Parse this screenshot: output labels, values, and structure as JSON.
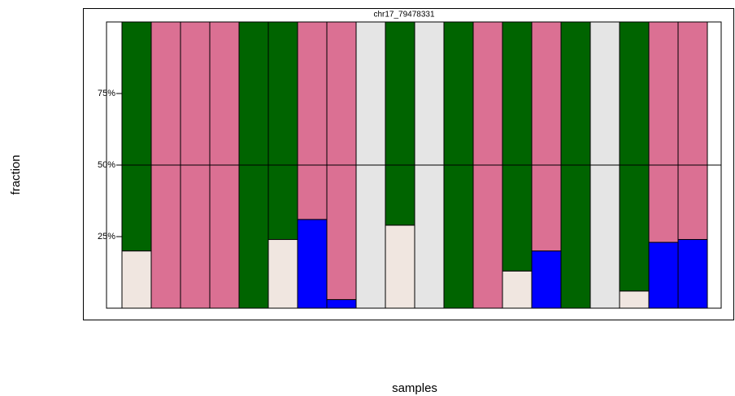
{
  "chart_data": {
    "type": "stacked-bar",
    "title": "chr17_79478331",
    "x_label": "samples",
    "y_label": "fraction",
    "ylim": [
      0,
      100
    ],
    "yticks": [
      {
        "value": 25,
        "label": "25%"
      },
      {
        "value": 50,
        "label": "50%"
      },
      {
        "value": 75,
        "label": "75%"
      }
    ],
    "reference_line": 50,
    "series": [
      {
        "color": "#f0e6e0",
        "values": [
          20,
          0,
          0,
          0,
          0,
          24,
          0,
          0,
          0,
          29,
          0,
          0,
          0,
          13,
          0,
          0,
          0,
          6,
          0,
          0
        ]
      },
      {
        "color": "#0000ff",
        "values": [
          0,
          0,
          0,
          0,
          0,
          0,
          31,
          3,
          0,
          0,
          0,
          0,
          0,
          0,
          20,
          0,
          0,
          0,
          23,
          24
        ]
      },
      {
        "color": "#006400",
        "values": [
          80,
          0,
          0,
          0,
          100,
          76,
          0,
          0,
          0,
          71,
          0,
          100,
          0,
          87,
          0,
          100,
          0,
          94,
          0,
          0
        ]
      },
      {
        "color": "#db7093",
        "values": [
          0,
          100,
          100,
          100,
          0,
          0,
          69,
          97,
          0,
          0,
          0,
          0,
          100,
          0,
          80,
          0,
          0,
          0,
          77,
          76
        ]
      },
      {
        "color": "#e5e5e5",
        "values": [
          0,
          0,
          0,
          0,
          0,
          0,
          0,
          0,
          100,
          0,
          100,
          0,
          0,
          0,
          0,
          0,
          100,
          0,
          0,
          0
        ]
      }
    ]
  }
}
